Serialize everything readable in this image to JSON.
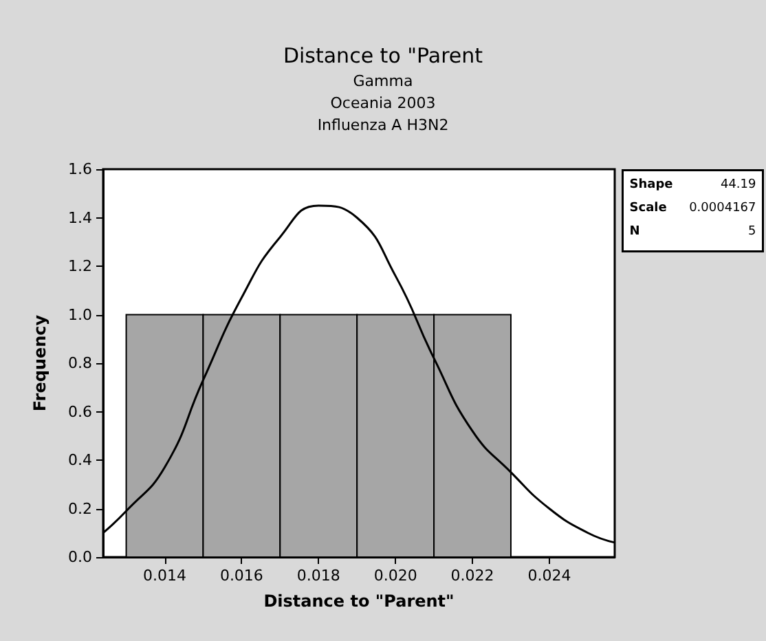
{
  "chart_data": {
    "type": "histogram",
    "title": "Distance to \"Parent",
    "subtitle": "Gamma\nOceania 2003\nInfluenza A H3N2",
    "xlabel": "Distance to \"Parent\"",
    "ylabel": "Frequency",
    "bins": [
      0.013,
      0.015,
      0.017,
      0.019,
      0.021,
      0.023
    ],
    "values": [
      1,
      1,
      1,
      1,
      1
    ],
    "color": "#a6a6a6",
    "series": [
      {
        "type": "line",
        "color": "#000000",
        "marker": "none",
        "x": [
          0.0124,
          0.013,
          0.014,
          0.015,
          0.016,
          0.017,
          0.018,
          0.019,
          0.02,
          0.021,
          0.022,
          0.023,
          0.024,
          0.025,
          0.0257
        ],
        "values": [
          0.1,
          0.19,
          0.37,
          0.73,
          1.07,
          1.32,
          1.45,
          1.4,
          1.16,
          0.82,
          0.52,
          0.35,
          0.2,
          0.1,
          0.06
        ]
      }
    ],
    "xlim": [
      0.0124,
      0.0257
    ],
    "xticks": [
      0.014,
      0.016,
      0.018,
      {
        "value": 0.02,
        "label": "0.020"
      },
      0.022,
      0.024
    ],
    "ylim": [
      0,
      1.6
    ],
    "yticks": [
      {
        "value": 0,
        "label": "0.0"
      },
      0.2,
      0.4,
      0.6,
      0.8,
      {
        "value": 1,
        "label": "1.0"
      },
      1.2,
      1.4,
      1.6
    ],
    "grid": false,
    "annotations": [
      "Shape",
      "44.19",
      "Scale",
      "0.0004167",
      "N",
      "5"
    ]
  }
}
